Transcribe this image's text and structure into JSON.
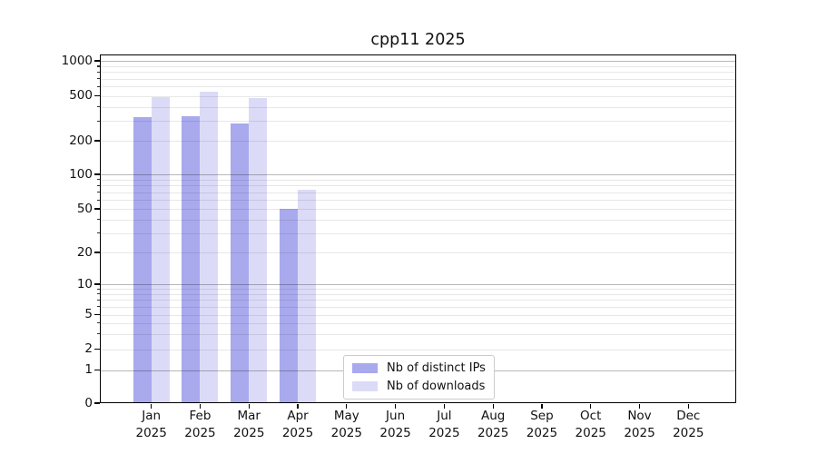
{
  "title": "cpp11 2025",
  "chart_data": {
    "type": "bar",
    "title": "cpp11 2025",
    "categories": [
      "Jan",
      "Feb",
      "Mar",
      "Apr",
      "May",
      "Jun",
      "Jul",
      "Aug",
      "Sep",
      "Oct",
      "Nov",
      "Dec"
    ],
    "category_year": "2025",
    "series": [
      {
        "name": "Nb of distinct IPs",
        "color": "#a9a9ee",
        "values": [
          325,
          330,
          285,
          50,
          0,
          0,
          0,
          0,
          0,
          0,
          0,
          0
        ]
      },
      {
        "name": "Nb of downloads",
        "color": "#dbdbf8",
        "values": [
          490,
          540,
          480,
          73,
          0,
          0,
          0,
          0,
          0,
          0,
          0,
          0
        ]
      }
    ],
    "xlabel": "",
    "ylabel": "",
    "yscale": "symlog",
    "yticks": [
      0,
      1,
      2,
      5,
      10,
      20,
      50,
      100,
      200,
      500,
      1000
    ],
    "ylim": [
      0,
      1200
    ],
    "grid": true,
    "grid_major_ticks": [
      1,
      10,
      100,
      1000
    ],
    "grid_major_color": "#b8b8b8",
    "grid_minor_color": "#e7e7e7",
    "legend_position": "lower center",
    "legend_labels": [
      "Nb of distinct IPs",
      "Nb of downloads"
    ]
  }
}
